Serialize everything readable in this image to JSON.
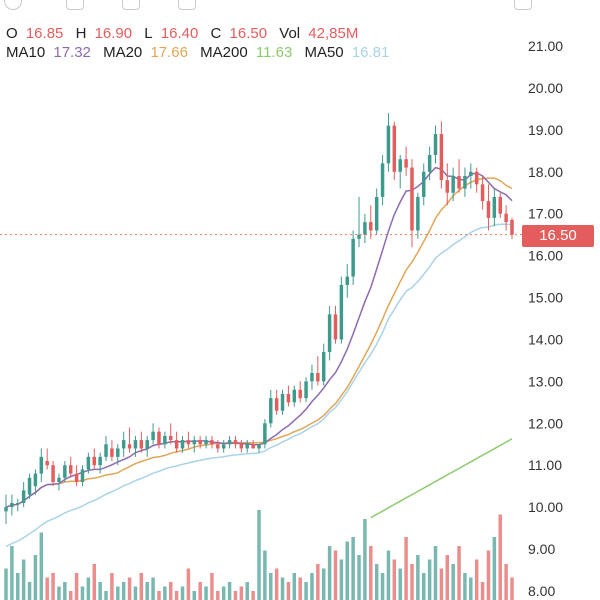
{
  "toolbar": {
    "icons": [
      "indicator-icon",
      "interval-icon",
      "compare-icon",
      "draw-icon",
      "layout-icon"
    ]
  },
  "legend": {
    "o_label": "O",
    "o_value": "16.85",
    "h_label": "H",
    "h_value": "16.90",
    "l_label": "L",
    "l_value": "16.40",
    "c_label": "C",
    "c_value": "16.50",
    "vol_label": "Vol",
    "vol_value": "42,85M",
    "ma10_label": "MA10",
    "ma10_value": "17.32",
    "ma20_label": "MA20",
    "ma20_value": "17.66",
    "ma200_label": "MA200",
    "ma200_value": "11.63",
    "ma50_label": "MA50",
    "ma50_value": "16.81"
  },
  "colors": {
    "up": "#3f9a8e",
    "down": "#e35d5d",
    "ma10": "#8c6bb0",
    "ma20": "#e0a657",
    "ma50": "#a9d3e8",
    "ma200": "#8ccb6c",
    "price_line": "#e57a5a"
  },
  "last_price_badge": "16.50",
  "chart_data": {
    "type": "candlestick",
    "y_axis": {
      "ticks": [
        "21.00",
        "20.00",
        "19.00",
        "18.00",
        "17.00",
        "16.00",
        "15.00",
        "14.00",
        "13.00",
        "12.00",
        "11.00",
        "10.00",
        "9.00",
        "8.00"
      ],
      "range": [
        7.8,
        21.3
      ],
      "position": "right"
    },
    "last_price": 16.5,
    "candles": [
      [
        9.9,
        10.3,
        9.6,
        10.0
      ],
      [
        10.0,
        10.3,
        9.8,
        10.1
      ],
      [
        10.1,
        10.2,
        9.9,
        10.1
      ],
      [
        10.1,
        10.6,
        10.0,
        10.4
      ],
      [
        10.3,
        10.8,
        10.2,
        10.7
      ],
      [
        10.5,
        10.9,
        10.3,
        10.8
      ],
      [
        10.8,
        11.4,
        10.6,
        11.2
      ],
      [
        11.1,
        11.4,
        10.9,
        11.0
      ],
      [
        11.0,
        11.1,
        10.5,
        10.6
      ],
      [
        10.6,
        10.8,
        10.4,
        10.7
      ],
      [
        10.7,
        11.1,
        10.6,
        11.0
      ],
      [
        11.0,
        11.2,
        10.7,
        10.8
      ],
      [
        10.8,
        11.0,
        10.5,
        10.6
      ],
      [
        10.6,
        11.0,
        10.5,
        10.9
      ],
      [
        10.9,
        11.3,
        10.8,
        11.2
      ],
      [
        11.2,
        11.4,
        10.9,
        11.0
      ],
      [
        11.0,
        11.3,
        10.8,
        11.2
      ],
      [
        11.2,
        11.7,
        11.1,
        11.5
      ],
      [
        11.4,
        11.6,
        11.1,
        11.2
      ],
      [
        11.2,
        11.5,
        11.0,
        11.4
      ],
      [
        11.4,
        11.8,
        11.2,
        11.6
      ],
      [
        11.5,
        11.9,
        11.3,
        11.4
      ],
      [
        11.4,
        11.7,
        11.2,
        11.6
      ],
      [
        11.6,
        11.8,
        11.3,
        11.4
      ],
      [
        11.4,
        11.7,
        11.2,
        11.6
      ],
      [
        11.6,
        12.0,
        11.5,
        11.8
      ],
      [
        11.8,
        11.9,
        11.4,
        11.5
      ],
      [
        11.5,
        11.8,
        11.4,
        11.7
      ],
      [
        11.7,
        12.0,
        11.5,
        11.6
      ],
      [
        11.6,
        11.8,
        11.3,
        11.4
      ],
      [
        11.4,
        11.7,
        11.3,
        11.6
      ],
      [
        11.6,
        11.8,
        11.4,
        11.5
      ],
      [
        11.5,
        11.7,
        11.3,
        11.6
      ],
      [
        11.6,
        11.7,
        11.4,
        11.5
      ],
      [
        11.5,
        11.7,
        11.4,
        11.6
      ],
      [
        11.6,
        11.7,
        11.4,
        11.5
      ],
      [
        11.5,
        11.6,
        11.3,
        11.4
      ],
      [
        11.4,
        11.6,
        11.3,
        11.5
      ],
      [
        11.5,
        11.7,
        11.4,
        11.6
      ],
      [
        11.6,
        11.7,
        11.4,
        11.5
      ],
      [
        11.5,
        11.6,
        11.3,
        11.4
      ],
      [
        11.4,
        11.6,
        11.3,
        11.5
      ],
      [
        11.5,
        11.6,
        11.4,
        11.4
      ],
      [
        11.4,
        11.5,
        11.3,
        11.5
      ],
      [
        11.5,
        12.1,
        11.4,
        12.0
      ],
      [
        12.0,
        12.8,
        11.9,
        12.6
      ],
      [
        12.6,
        12.8,
        12.2,
        12.3
      ],
      [
        12.3,
        12.8,
        12.2,
        12.7
      ],
      [
        12.7,
        12.9,
        12.4,
        12.5
      ],
      [
        12.5,
        12.9,
        12.4,
        12.8
      ],
      [
        12.8,
        13.0,
        12.5,
        12.6
      ],
      [
        12.6,
        13.1,
        12.5,
        13.0
      ],
      [
        13.0,
        13.4,
        12.8,
        13.2
      ],
      [
        13.2,
        13.6,
        12.9,
        13.0
      ],
      [
        13.0,
        13.9,
        12.9,
        13.7
      ],
      [
        13.7,
        14.8,
        13.5,
        14.6
      ],
      [
        14.6,
        14.8,
        13.9,
        14.0
      ],
      [
        14.0,
        15.5,
        13.9,
        15.3
      ],
      [
        15.3,
        15.8,
        15.0,
        15.5
      ],
      [
        15.5,
        16.6,
        15.3,
        16.4
      ],
      [
        16.4,
        17.4,
        16.2,
        16.5
      ],
      [
        16.5,
        17.0,
        16.3,
        16.8
      ],
      [
        16.8,
        17.2,
        16.4,
        16.6
      ],
      [
        16.6,
        17.6,
        16.5,
        17.4
      ],
      [
        17.4,
        18.4,
        17.2,
        18.2
      ],
      [
        18.2,
        19.4,
        18.0,
        19.1
      ],
      [
        19.1,
        19.2,
        17.8,
        18.0
      ],
      [
        18.0,
        18.4,
        17.6,
        18.3
      ],
      [
        18.3,
        18.6,
        17.9,
        18.1
      ],
      [
        18.1,
        18.3,
        16.2,
        16.6
      ],
      [
        16.6,
        17.5,
        16.4,
        17.4
      ],
      [
        17.4,
        18.2,
        17.2,
        18.0
      ],
      [
        18.0,
        18.6,
        17.8,
        18.4
      ],
      [
        18.4,
        19.1,
        18.2,
        18.9
      ],
      [
        18.9,
        19.2,
        17.6,
        17.8
      ],
      [
        17.8,
        18.2,
        17.2,
        17.5
      ],
      [
        17.5,
        18.1,
        17.3,
        17.9
      ],
      [
        17.9,
        18.3,
        17.5,
        17.6
      ],
      [
        17.6,
        18.1,
        17.4,
        17.9
      ],
      [
        17.9,
        18.2,
        17.6,
        18.0
      ],
      [
        18.0,
        18.1,
        17.5,
        17.7
      ],
      [
        17.7,
        17.9,
        17.1,
        17.3
      ],
      [
        17.3,
        17.7,
        16.6,
        16.9
      ],
      [
        16.9,
        17.6,
        16.7,
        17.4
      ],
      [
        17.4,
        17.5,
        16.9,
        17.0
      ],
      [
        17.0,
        17.2,
        16.6,
        16.8
      ],
      [
        16.85,
        16.9,
        16.4,
        16.5
      ]
    ],
    "volume_heights": [
      0.35,
      0.6,
      0.3,
      0.45,
      0.2,
      0.5,
      0.75,
      0.25,
      0.3,
      0.15,
      0.2,
      0.1,
      0.3,
      0.15,
      0.25,
      0.4,
      0.2,
      0.1,
      0.3,
      0.15,
      0.2,
      0.25,
      0.15,
      0.3,
      0.2,
      0.25,
      0.1,
      0.15,
      0.2,
      0.1,
      0.15,
      0.35,
      0.1,
      0.2,
      0.15,
      0.3,
      0.1,
      0.15,
      0.2,
      0.1,
      0.15,
      0.2,
      0.1,
      1.0,
      0.55,
      0.3,
      0.35,
      0.25,
      0.2,
      0.3,
      0.25,
      0.2,
      0.3,
      0.4,
      0.35,
      0.6,
      0.55,
      0.45,
      0.65,
      0.7,
      0.5,
      0.9,
      0.6,
      0.4,
      0.3,
      0.55,
      0.45,
      0.35,
      0.7,
      0.4,
      0.5,
      0.3,
      0.45,
      0.6,
      0.35,
      0.5,
      0.4,
      0.6,
      0.3,
      0.25,
      0.45,
      0.2,
      0.55,
      0.7,
      0.95,
      0.4,
      0.25
    ]
  }
}
